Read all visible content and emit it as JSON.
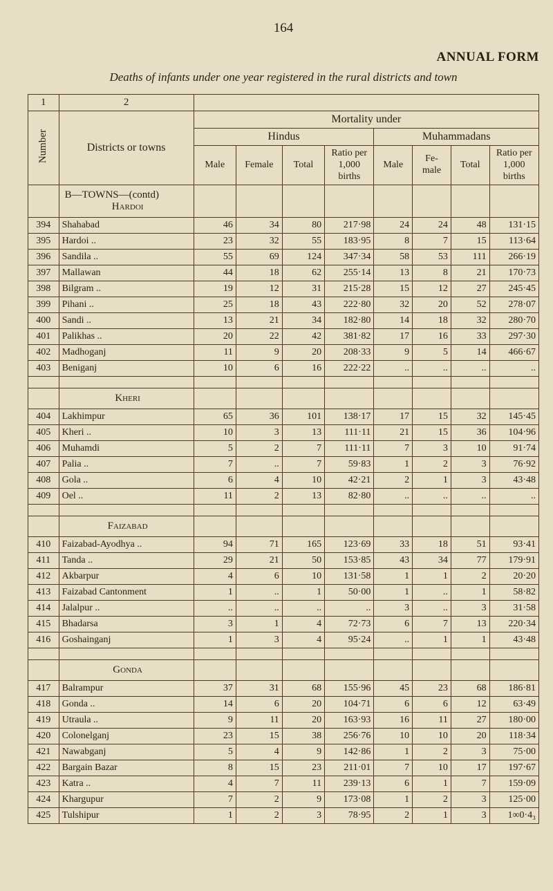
{
  "page_number": "164",
  "annual_form": "ANNUAL FORM",
  "subtitle": "Deaths of infants under one year registered in the rural districts and town",
  "column_header_1": "1",
  "column_header_2": "2",
  "districts_label": "Districts or towns",
  "number_label": "Number",
  "mortality_label": "Mortality under",
  "group_hindus": "Hindus",
  "group_muhammadans": "Muhammadans",
  "col_male": "Male",
  "col_female": "Female",
  "col_total": "Total",
  "col_ratio": "Ratio per 1,000 births",
  "col_fe_male": "Fe- male",
  "section_b_towns": "B—TOWNS—(contd)",
  "hardoi_hdr": "Hardoi",
  "kheri_hdr": "Kheri",
  "faizabad_hdr": "Faizabad",
  "gonda_hdr": "Gonda",
  "rows": {
    "hardoi": [
      {
        "n": "394",
        "d": "Shahabad",
        "hm": "46",
        "hf": "34",
        "ht": "80",
        "hr": "217·98",
        "mm": "24",
        "mf": "24",
        "mt": "48",
        "mr": "131·15"
      },
      {
        "n": "395",
        "d": "Hardoi  ..",
        "hm": "23",
        "hf": "32",
        "ht": "55",
        "hr": "183·95",
        "mm": "8",
        "mf": "7",
        "mt": "15",
        "mr": "113·64"
      },
      {
        "n": "396",
        "d": "Sandila ..",
        "hm": "55",
        "hf": "69",
        "ht": "124",
        "hr": "347·34",
        "mm": "58",
        "mf": "53",
        "mt": "111",
        "mr": "266·19"
      },
      {
        "n": "397",
        "d": "Mallawan",
        "hm": "44",
        "hf": "18",
        "ht": "62",
        "hr": "255·14",
        "mm": "13",
        "mf": "8",
        "mt": "21",
        "mr": "170·73"
      },
      {
        "n": "398",
        "d": "Bilgram ..",
        "hm": "19",
        "hf": "12",
        "ht": "31",
        "hr": "215·28",
        "mm": "15",
        "mf": "12",
        "mt": "27",
        "mr": "245·45"
      },
      {
        "n": "399",
        "d": "Pihani  ..",
        "hm": "25",
        "hf": "18",
        "ht": "43",
        "hr": "222·80",
        "mm": "32",
        "mf": "20",
        "mt": "52",
        "mr": "278·07"
      },
      {
        "n": "400",
        "d": "Sandi   ..",
        "hm": "13",
        "hf": "21",
        "ht": "34",
        "hr": "182·80",
        "mm": "14",
        "mf": "18",
        "mt": "32",
        "mr": "280·70"
      },
      {
        "n": "401",
        "d": "Palikhas ..",
        "hm": "20",
        "hf": "22",
        "ht": "42",
        "hr": "381·82",
        "mm": "17",
        "mf": "16",
        "mt": "33",
        "mr": "297·30"
      },
      {
        "n": "402",
        "d": "Madhoganj",
        "hm": "11",
        "hf": "9",
        "ht": "20",
        "hr": "208·33",
        "mm": "9",
        "mf": "5",
        "mt": "14",
        "mr": "466·67"
      },
      {
        "n": "403",
        "d": "Beniganj",
        "hm": "10",
        "hf": "6",
        "ht": "16",
        "hr": "222·22",
        "mm": "..",
        "mf": "..",
        "mt": "..",
        "mr": ".."
      }
    ],
    "kheri": [
      {
        "n": "404",
        "d": "Lakhimpur",
        "hm": "65",
        "hf": "36",
        "ht": "101",
        "hr": "138·17",
        "mm": "17",
        "mf": "15",
        "mt": "32",
        "mr": "145·45"
      },
      {
        "n": "405",
        "d": "Kheri   ..",
        "hm": "10",
        "hf": "3",
        "ht": "13",
        "hr": "111·11",
        "mm": "21",
        "mf": "15",
        "mt": "36",
        "mr": "104·96"
      },
      {
        "n": "406",
        "d": "Muhamdi",
        "hm": "5",
        "hf": "2",
        "ht": "7",
        "hr": "111·11",
        "mm": "7",
        "mf": "3",
        "mt": "10",
        "mr": "91·74"
      },
      {
        "n": "407",
        "d": "Palia   ..",
        "hm": "7",
        "hf": "..",
        "ht": "7",
        "hr": "59·83",
        "mm": "1",
        "mf": "2",
        "mt": "3",
        "mr": "76·92"
      },
      {
        "n": "408",
        "d": "Gola    ..",
        "hm": "6",
        "hf": "4",
        "ht": "10",
        "hr": "42·21",
        "mm": "2",
        "mf": "1",
        "mt": "3",
        "mr": "43·48"
      },
      {
        "n": "409",
        "d": "Oel     ..",
        "hm": "11",
        "hf": "2",
        "ht": "13",
        "hr": "82·80",
        "mm": "..",
        "mf": "..",
        "mt": "..",
        "mr": ".."
      }
    ],
    "faizabad": [
      {
        "n": "410",
        "d": "Faizabad-Ayodhya ..",
        "hm": "94",
        "hf": "71",
        "ht": "165",
        "hr": "123·69",
        "mm": "33",
        "mf": "18",
        "mt": "51",
        "mr": "93·41"
      },
      {
        "n": "411",
        "d": "Tanda   ..",
        "hm": "29",
        "hf": "21",
        "ht": "50",
        "hr": "153·85",
        "mm": "43",
        "mf": "34",
        "mt": "77",
        "mr": "179·91"
      },
      {
        "n": "412",
        "d": "Akbarpur",
        "hm": "4",
        "hf": "6",
        "ht": "10",
        "hr": "131·58",
        "mm": "1",
        "mf": "1",
        "mt": "2",
        "mr": "20·20"
      },
      {
        "n": "413",
        "d": "Faizabad Cantonment",
        "hm": "1",
        "hf": "..",
        "ht": "1",
        "hr": "50·00",
        "mm": "1",
        "mf": "..",
        "mt": "1",
        "mr": "58·82"
      },
      {
        "n": "414",
        "d": "Jalalpur ..",
        "hm": "..",
        "hf": "..",
        "ht": "..",
        "hr": "..",
        "mm": "3",
        "mf": "..",
        "mt": "3",
        "mr": "31·58"
      },
      {
        "n": "415",
        "d": "Bhadarsa",
        "hm": "3",
        "hf": "1",
        "ht": "4",
        "hr": "72·73",
        "mm": "6",
        "mf": "7",
        "mt": "13",
        "mr": "220·34"
      },
      {
        "n": "416",
        "d": "Goshainganj",
        "hm": "1",
        "hf": "3",
        "ht": "4",
        "hr": "95·24",
        "mm": "..",
        "mf": "1",
        "mt": "1",
        "mr": "43·48"
      }
    ],
    "gonda": [
      {
        "n": "417",
        "d": "Balrampur",
        "hm": "37",
        "hf": "31",
        "ht": "68",
        "hr": "155·96",
        "mm": "45",
        "mf": "23",
        "mt": "68",
        "mr": "186·81"
      },
      {
        "n": "418",
        "d": "Gonda   ..",
        "hm": "14",
        "hf": "6",
        "ht": "20",
        "hr": "104·71",
        "mm": "6",
        "mf": "6",
        "mt": "12",
        "mr": "63·49"
      },
      {
        "n": "419",
        "d": "Utraula ..",
        "hm": "9",
        "hf": "11",
        "ht": "20",
        "hr": "163·93",
        "mm": "16",
        "mf": "11",
        "mt": "27",
        "mr": "180·00"
      },
      {
        "n": "420",
        "d": "Colonelganj",
        "hm": "23",
        "hf": "15",
        "ht": "38",
        "hr": "256·76",
        "mm": "10",
        "mf": "10",
        "mt": "20",
        "mr": "118·34"
      },
      {
        "n": "421",
        "d": "Nawabganj",
        "hm": "5",
        "hf": "4",
        "ht": "9",
        "hr": "142·86",
        "mm": "1",
        "mf": "2",
        "mt": "3",
        "mr": "75·00"
      },
      {
        "n": "422",
        "d": "Bargain Bazar",
        "hm": "8",
        "hf": "15",
        "ht": "23",
        "hr": "211·01",
        "mm": "7",
        "mf": "10",
        "mt": "17",
        "mr": "197·67"
      },
      {
        "n": "423",
        "d": "Katra   ..",
        "hm": "4",
        "hf": "7",
        "ht": "11",
        "hr": "239·13",
        "mm": "6",
        "mf": "1",
        "mt": "7",
        "mr": "159·09"
      },
      {
        "n": "424",
        "d": "Khargupur",
        "hm": "7",
        "hf": "2",
        "ht": "9",
        "hr": "173·08",
        "mm": "1",
        "mf": "2",
        "mt": "3",
        "mr": "125·00"
      },
      {
        "n": "425",
        "d": "Tulshipur",
        "hm": "1",
        "hf": "2",
        "ht": "3",
        "hr": "78·95",
        "mm": "2",
        "mf": "1",
        "mt": "3",
        "mr": "1∞0·4₃"
      }
    ]
  },
  "colors": {
    "page_bg": "#e8dec5",
    "ink": "#2a1d12",
    "border": "#4a3520"
  }
}
